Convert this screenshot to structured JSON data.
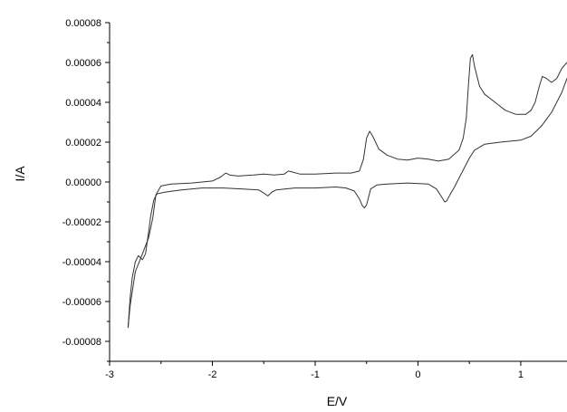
{
  "chart_data": {
    "type": "line",
    "title": "",
    "xlabel": "E/V",
    "ylabel": "I/A",
    "xlim": [
      -3,
      1.45
    ],
    "ylim": [
      -9e-05,
      8e-05
    ],
    "x_ticks": [
      "-3",
      "-2",
      "-1",
      "0",
      "1"
    ],
    "y_ticks": [
      "0.00008",
      "0.00006",
      "0.00004",
      "0.00002",
      "0.00000",
      "-0.00002",
      "-0.00004",
      "-0.00006",
      "-0.00008"
    ],
    "grid": false,
    "legend": "none",
    "line_color": "#333333",
    "series": [
      {
        "points": [
          [
            -2.82,
            -7.3e-05
          ],
          [
            -2.8,
            -5.8e-05
          ],
          [
            -2.78,
            -4.8e-05
          ],
          [
            -2.75,
            -4e-05
          ],
          [
            -2.72,
            -3.7e-05
          ],
          [
            -2.68,
            -3.9e-05
          ],
          [
            -2.65,
            -3.6e-05
          ],
          [
            -2.62,
            -2.5e-05
          ],
          [
            -2.6,
            -1.7e-05
          ],
          [
            -2.57,
            -9e-06
          ],
          [
            -2.54,
            -6e-06
          ],
          [
            -2.5,
            -5.5e-06
          ],
          [
            -2.45,
            -5e-06
          ],
          [
            -2.3,
            -4e-06
          ],
          [
            -2.1,
            -3e-06
          ],
          [
            -1.9,
            -3e-06
          ],
          [
            -1.7,
            -3.5e-06
          ],
          [
            -1.55,
            -4e-06
          ],
          [
            -1.5,
            -5.5e-06
          ],
          [
            -1.46,
            -7e-06
          ],
          [
            -1.42,
            -5e-06
          ],
          [
            -1.38,
            -4e-06
          ],
          [
            -1.2,
            -3e-06
          ],
          [
            -1.0,
            -3e-06
          ],
          [
            -0.8,
            -2.5e-06
          ],
          [
            -0.7,
            -3e-06
          ],
          [
            -0.62,
            -4.5e-06
          ],
          [
            -0.57,
            -8.5e-06
          ],
          [
            -0.54,
            -1.2e-05
          ],
          [
            -0.52,
            -1.3e-05
          ],
          [
            -0.5,
            -1.15e-05
          ],
          [
            -0.48,
            -7.5e-06
          ],
          [
            -0.46,
            -3.5e-06
          ],
          [
            -0.4,
            -1.5e-06
          ],
          [
            -0.3,
            -1e-06
          ],
          [
            -0.1,
            -5e-07
          ],
          [
            0.1,
            -1e-06
          ],
          [
            0.18,
            -3.5e-06
          ],
          [
            0.23,
            -7.5e-06
          ],
          [
            0.26,
            -1e-05
          ],
          [
            0.28,
            -9.5e-06
          ],
          [
            0.31,
            -6.5e-06
          ],
          [
            0.35,
            -3e-06
          ],
          [
            0.4,
            2e-06
          ],
          [
            0.45,
            7e-06
          ],
          [
            0.5,
            1.2e-05
          ],
          [
            0.55,
            1.6e-05
          ],
          [
            0.65,
            1.9e-05
          ],
          [
            0.8,
            2e-05
          ],
          [
            1.0,
            2.1e-05
          ],
          [
            1.1,
            2.3e-05
          ],
          [
            1.2,
            2.8e-05
          ],
          [
            1.3,
            3.5e-05
          ],
          [
            1.4,
            4.5e-05
          ],
          [
            1.45,
            5.2e-05
          ]
        ]
      },
      {
        "points": [
          [
            1.45,
            6e-05
          ],
          [
            1.4,
            5.7e-05
          ],
          [
            1.35,
            5.2e-05
          ],
          [
            1.3,
            5e-05
          ],
          [
            1.25,
            5.2e-05
          ],
          [
            1.21,
            5.3e-05
          ],
          [
            1.18,
            4.8e-05
          ],
          [
            1.14,
            4e-05
          ],
          [
            1.1,
            3.6e-05
          ],
          [
            1.05,
            3.4e-05
          ],
          [
            0.95,
            3.4e-05
          ],
          [
            0.85,
            3.6e-05
          ],
          [
            0.75,
            4e-05
          ],
          [
            0.65,
            4.4e-05
          ],
          [
            0.6,
            4.8e-05
          ],
          [
            0.55,
            5.8e-05
          ],
          [
            0.53,
            6.4e-05
          ],
          [
            0.51,
            6.2e-05
          ],
          [
            0.49,
            4.8e-05
          ],
          [
            0.47,
            3.2e-05
          ],
          [
            0.44,
            2.2e-05
          ],
          [
            0.4,
            1.6e-05
          ],
          [
            0.3,
            1.15e-05
          ],
          [
            0.2,
            1.05e-05
          ],
          [
            0.1,
            1.15e-05
          ],
          [
            0.0,
            1.2e-05
          ],
          [
            -0.1,
            1.1e-05
          ],
          [
            -0.2,
            1.15e-05
          ],
          [
            -0.3,
            1.35e-05
          ],
          [
            -0.38,
            1.65e-05
          ],
          [
            -0.44,
            2.3e-05
          ],
          [
            -0.47,
            2.55e-05
          ],
          [
            -0.5,
            2.2e-05
          ],
          [
            -0.53,
            1.15e-05
          ],
          [
            -0.57,
            5.5e-06
          ],
          [
            -0.65,
            4.5e-06
          ],
          [
            -0.8,
            4.5e-06
          ],
          [
            -1.0,
            4e-06
          ],
          [
            -1.15,
            4e-06
          ],
          [
            -1.22,
            5e-06
          ],
          [
            -1.26,
            5.5e-06
          ],
          [
            -1.3,
            4e-06
          ],
          [
            -1.4,
            3.5e-06
          ],
          [
            -1.5,
            4e-06
          ],
          [
            -1.6,
            3.5e-06
          ],
          [
            -1.75,
            3e-06
          ],
          [
            -1.83,
            3.5e-06
          ],
          [
            -1.87,
            4.5e-06
          ],
          [
            -1.92,
            2.5e-06
          ],
          [
            -2.0,
            5e-07
          ],
          [
            -2.2,
            -5e-07
          ],
          [
            -2.4,
            -1e-06
          ],
          [
            -2.5,
            -2e-06
          ],
          [
            -2.55,
            -6.5e-06
          ],
          [
            -2.58,
            -1.8e-05
          ],
          [
            -2.62,
            -2.8e-05
          ],
          [
            -2.68,
            -3.6e-05
          ],
          [
            -2.75,
            -4.5e-05
          ],
          [
            -2.8,
            -6.2e-05
          ],
          [
            -2.82,
            -7.3e-05
          ]
        ]
      }
    ]
  }
}
